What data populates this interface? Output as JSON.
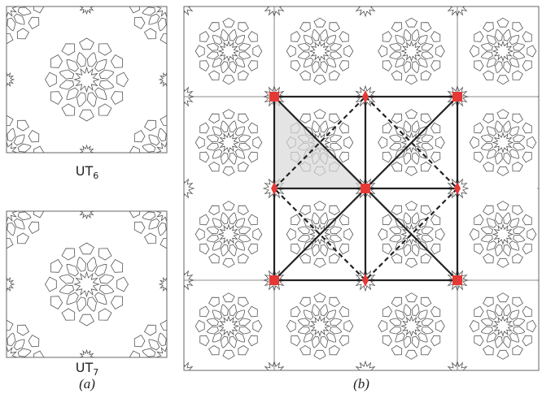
{
  "panel_a": {
    "tiles": [
      {
        "name": "UT",
        "subscript": "6"
      },
      {
        "name": "UT",
        "subscript": "7"
      }
    ],
    "caption": "(a)"
  },
  "panel_b": {
    "caption": "(b)"
  }
}
